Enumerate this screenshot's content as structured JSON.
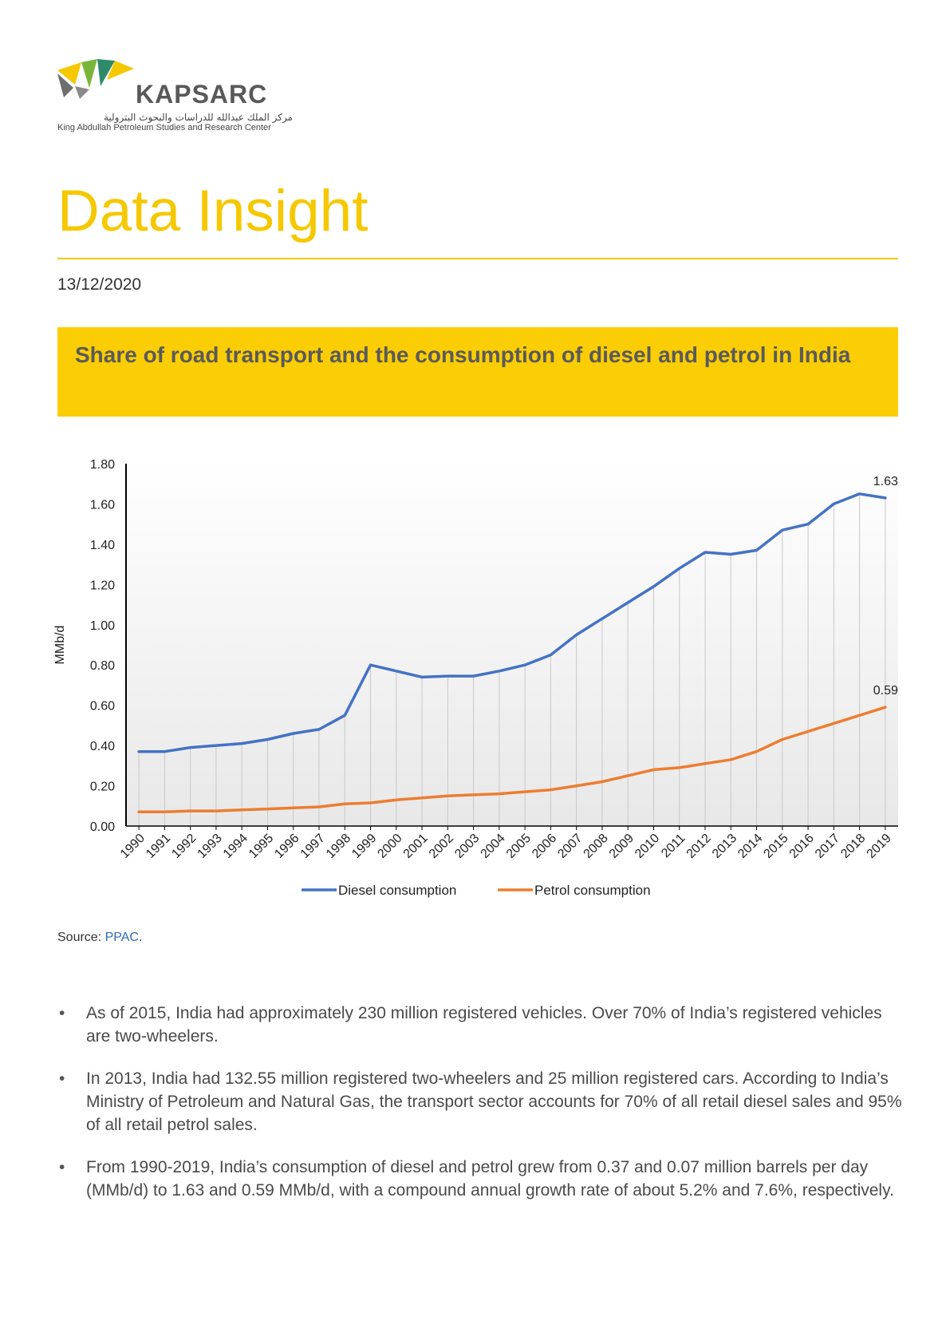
{
  "header": {
    "logo_name": "KAPSARC",
    "logo_arabic": "مركز الملك عبدالله للدراسات والبحوث البترولية",
    "logo_subtitle": "King Abdullah Petroleum Studies and Research Center",
    "colors": {
      "brand_yellow": "#f5c800",
      "banner_yellow": "#fbcd05"
    }
  },
  "page": {
    "title": "Data Insight",
    "date": "13/12/2020",
    "banner_title": "Share of road transport and the consumption of diesel and petrol in India"
  },
  "chart_data": {
    "type": "line",
    "title": "",
    "xlabel": "",
    "ylabel": "MMb/d",
    "ylim": [
      0,
      1.8
    ],
    "yticks": [
      "0.00",
      "0.20",
      "0.40",
      "0.60",
      "0.80",
      "1.00",
      "1.20",
      "1.40",
      "1.60",
      "1.80"
    ],
    "categories": [
      "1990",
      "1991",
      "1992",
      "1993",
      "1994",
      "1995",
      "1996",
      "1997",
      "1998",
      "1999",
      "2000",
      "2001",
      "2002",
      "2003",
      "2004",
      "2005",
      "2006",
      "2007",
      "2008",
      "2009",
      "2010",
      "2011",
      "2012",
      "2013",
      "2014",
      "2015",
      "2016",
      "2017",
      "2018",
      "2019"
    ],
    "series": [
      {
        "name": "Diesel consumption",
        "color": "#4472c4",
        "values": [
          0.37,
          0.37,
          0.39,
          0.4,
          0.41,
          0.43,
          0.46,
          0.48,
          0.55,
          0.8,
          0.77,
          0.74,
          0.745,
          0.745,
          0.77,
          0.8,
          0.85,
          0.95,
          1.03,
          1.11,
          1.19,
          1.28,
          1.36,
          1.35,
          1.37,
          1.47,
          1.5,
          1.6,
          1.65,
          1.63
        ]
      },
      {
        "name": "Petrol consumption",
        "color": "#ed7d31",
        "values": [
          0.07,
          0.07,
          0.075,
          0.075,
          0.08,
          0.085,
          0.09,
          0.095,
          0.11,
          0.115,
          0.13,
          0.14,
          0.15,
          0.155,
          0.16,
          0.17,
          0.18,
          0.2,
          0.22,
          0.25,
          0.28,
          0.29,
          0.31,
          0.33,
          0.37,
          0.43,
          0.47,
          0.51,
          0.55,
          0.59
        ]
      }
    ],
    "end_labels": [
      "1.63",
      "0.59"
    ],
    "legend": "bottom"
  },
  "source": {
    "label": "Source: ",
    "link_text": "PPAC",
    "suffix": "."
  },
  "bullets": [
    "As of 2015, India had approximately 230 million registered vehicles. Over 70% of India’s registered vehicles are two-wheelers.",
    "In 2013, India had 132.55 million registered two-wheelers and 25 million registered cars. According to India’s Ministry of Petroleum and Natural Gas, the transport sector accounts for 70% of all retail diesel sales and 95% of all retail petrol sales.",
    "From 1990-2019, India’s consumption of diesel and petrol grew from 0.37 and 0.07 million barrels per day (MMb/d) to 1.63 and 0.59 MMb/d, with a compound annual growth rate of about 5.2% and 7.6%, respectively."
  ]
}
